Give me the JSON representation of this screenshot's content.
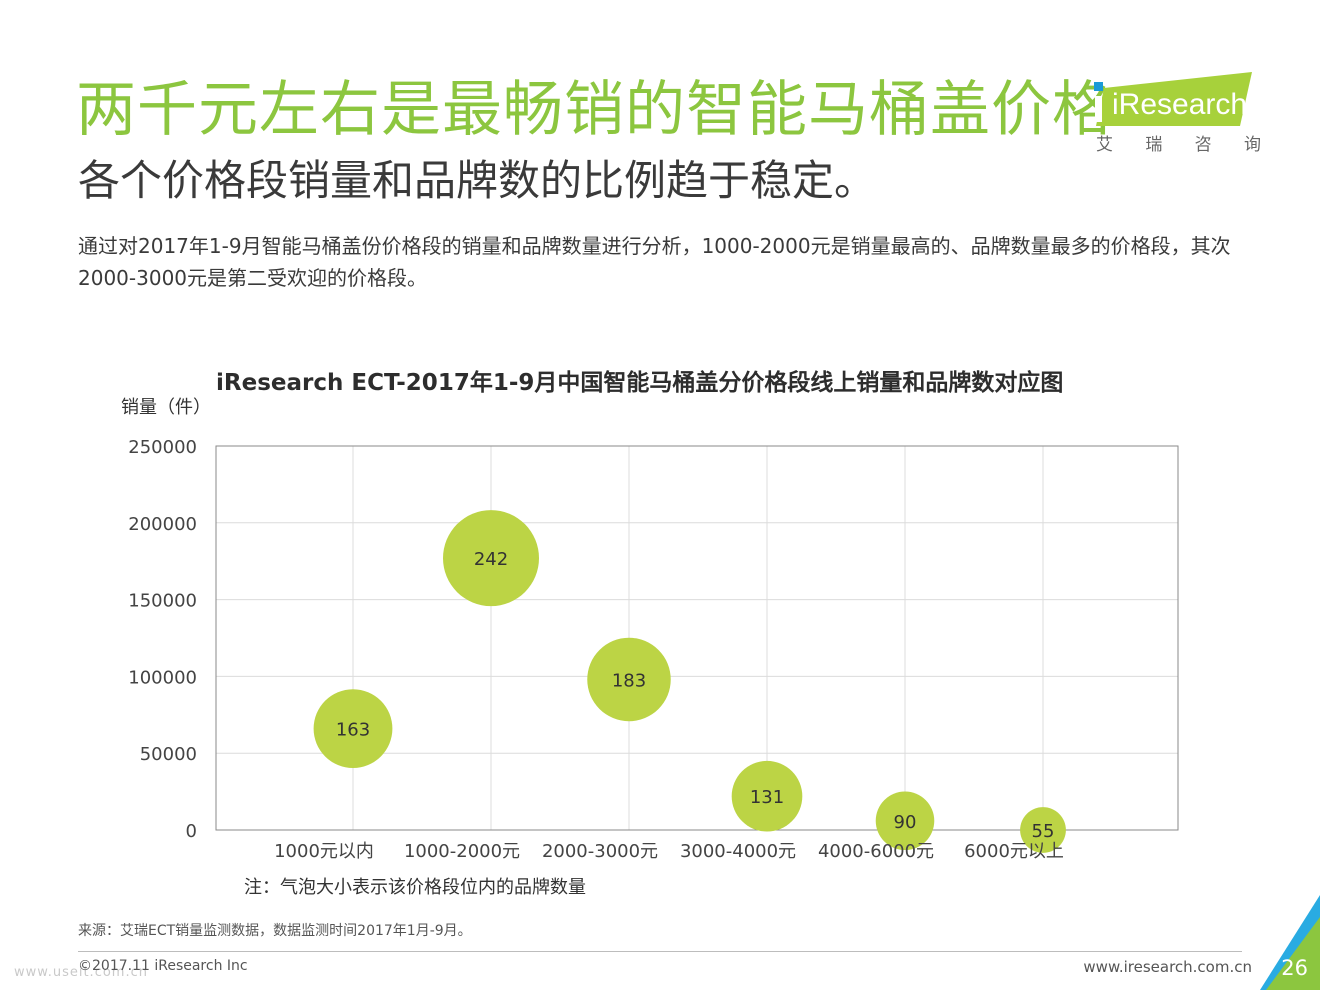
{
  "header": {
    "title": "两千元左右是最畅销的智能马桶盖价格",
    "subtitle": "各个价格段销量和品牌数的比例趋于稳定。",
    "description": "通过对2017年1-9月智能马桶盖份价格段的销量和品牌数量进行分析，1000-2000元是销量最高的、品牌数量最多的价格段，其次2000-3000元是第二受欢迎的价格段。"
  },
  "logo": {
    "brand": "iResearch",
    "chinese": [
      "艾",
      "瑞",
      "咨",
      "询"
    ]
  },
  "chart_data": {
    "type": "scatter",
    "title": "iResearch ECT-2017年1-9月中国智能马桶盖分价格段线上销量和品牌数对应图",
    "ylabel": "销量（件）",
    "xlabel": "",
    "categories": [
      "1000元以内",
      "1000-2000元",
      "2000-3000元",
      "3000-4000元",
      "4000-6000元",
      "6000元以上"
    ],
    "values": [
      66000,
      177000,
      98000,
      22000,
      6000,
      0
    ],
    "bubble_sizes": [
      163,
      242,
      183,
      131,
      90,
      55
    ],
    "yticks": [
      "250000",
      "200000",
      "150000",
      "100000",
      "50000",
      "0"
    ],
    "ylim": [
      0,
      250000
    ],
    "grid": true,
    "bubble_color": "#bcd445",
    "note": "注：气泡大小表示该价格段位内的品牌数量"
  },
  "footer": {
    "source": "来源：艾瑞ECT销量监测数据，数据监测时间2017年1月-9月。",
    "copyright": "©2017.11 iResearch Inc",
    "website": "www.iresearch.com.cn",
    "page_number": "26",
    "watermark": "www.useit.com.cn"
  }
}
